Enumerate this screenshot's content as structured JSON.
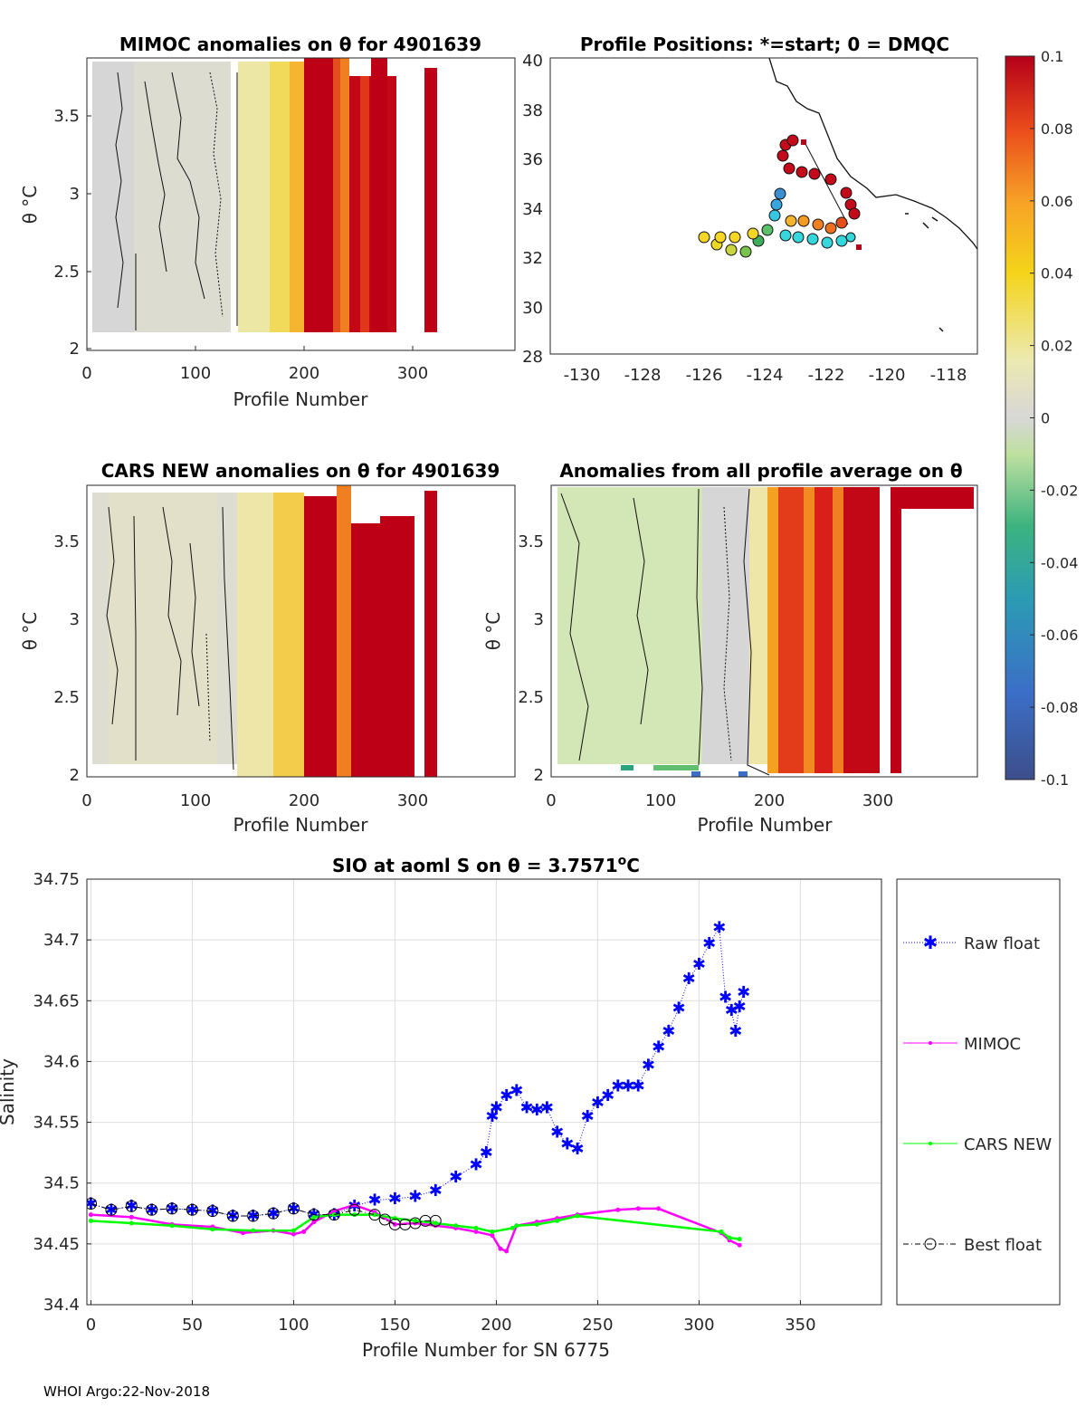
{
  "footer": "WHOI Argo:22-Nov-2018",
  "colorbar": {
    "ticks": [
      "0.1",
      "0.08",
      "0.06",
      "0.04",
      "0.02",
      "0",
      "-0.02",
      "-0.04",
      "-0.06",
      "-0.08",
      "-0.1"
    ],
    "range": [
      -0.1,
      0.1
    ],
    "colormap": "parula-to-red (diverging)"
  },
  "panels": {
    "p1": {
      "title": "MIMOC anomalies on θ  for 4901639",
      "xlabel": "Profile Number",
      "ylabel": "θ °C",
      "xticks": [
        "0",
        "100",
        "200",
        "300"
      ],
      "yticks": [
        "3.5",
        "3",
        "2.5",
        "2"
      ]
    },
    "p2": {
      "title": "Profile Positions: *=start; 0 = DMQC",
      "xticks": [
        "-130",
        "-128",
        "-126",
        "-124",
        "-122",
        "-120",
        "-118"
      ],
      "yticks": [
        "40",
        "38",
        "36",
        "34",
        "32",
        "30",
        "28"
      ]
    },
    "p3": {
      "title": "CARS NEW anomalies on θ for 4901639",
      "xlabel": "Profile Number",
      "ylabel": "θ °C",
      "xticks": [
        "0",
        "100",
        "200",
        "300"
      ],
      "yticks": [
        "3.5",
        "3",
        "2.5",
        "2"
      ]
    },
    "p4": {
      "title": "Anomalies from all profile average on θ",
      "xlabel": "Profile Number",
      "ylabel": "θ °C",
      "xticks": [
        "0",
        "100",
        "200",
        "300"
      ],
      "yticks": [
        "3.5",
        "3",
        "2.5",
        "2"
      ]
    }
  },
  "chart_data": [
    {
      "type": "heatmap",
      "title": "MIMOC anomalies on θ  for 4901639",
      "xlabel": "Profile Number",
      "ylabel": "θ °C",
      "xlim": [
        0,
        390
      ],
      "ylim": [
        1.98,
        3.83
      ],
      "column_anomalies": [
        {
          "profile_range": [
            5,
            145
          ],
          "anomaly": 0.0
        },
        {
          "profile_range": [
            145,
            195
          ],
          "anomaly": 0.03
        },
        {
          "profile_range": [
            195,
            205
          ],
          "anomaly": 0.08
        },
        {
          "profile_range": [
            205,
            285
          ],
          "anomaly": 0.1
        },
        {
          "profile_range": [
            310,
            322
          ],
          "anomaly": 0.1
        }
      ]
    },
    {
      "type": "scatter",
      "title": "Profile Positions: *=start; 0 = DMQC",
      "xlim": [
        -131.5,
        -117
      ],
      "ylim": [
        28,
        40
      ],
      "track": {
        "lon_start": -121.3,
        "lat_start": 32.4,
        "lon_end": -122.8,
        "lat_end": 36.6
      },
      "colored_by": "anomaly"
    },
    {
      "type": "heatmap",
      "title": "CARS NEW anomalies on θ for 4901639",
      "xlabel": "Profile Number",
      "ylabel": "θ °C",
      "xlim": [
        0,
        390
      ],
      "ylim": [
        1.98,
        3.83
      ],
      "column_anomalies": [
        {
          "profile_range": [
            5,
            140
          ],
          "anomaly": 0.005
        },
        {
          "profile_range": [
            140,
            200
          ],
          "anomaly": 0.03
        },
        {
          "profile_range": [
            200,
            240
          ],
          "anomaly": 0.09
        },
        {
          "profile_range": [
            240,
            300
          ],
          "anomaly": 0.1
        },
        {
          "profile_range": [
            310,
            322
          ],
          "anomaly": 0.1
        }
      ]
    },
    {
      "type": "heatmap",
      "title": "Anomalies from all profile average on θ",
      "xlabel": "Profile Number",
      "ylabel": "θ °C",
      "xlim": [
        0,
        390
      ],
      "ylim": [
        1.98,
        3.83
      ],
      "column_anomalies": [
        {
          "profile_range": [
            5,
            135
          ],
          "anomaly": -0.015
        },
        {
          "profile_range": [
            135,
            195
          ],
          "anomaly": 0.0
        },
        {
          "profile_range": [
            195,
            300
          ],
          "anomaly": 0.08
        },
        {
          "profile_range": [
            310,
            390
          ],
          "anomaly": 0.1
        }
      ]
    },
    {
      "type": "line",
      "title": "SIO at aoml S on θ = 3.7571°C",
      "xlabel": "Profile Number for SN 6775",
      "ylabel": "Salinity",
      "xlim": [
        -2,
        390
      ],
      "ylim": [
        34.4,
        34.75
      ],
      "xticks": [
        "0",
        "50",
        "100",
        "150",
        "200",
        "250",
        "300",
        "350"
      ],
      "yticks": [
        "34.75",
        "34.7",
        "34.65",
        "34.6",
        "34.55",
        "34.5",
        "34.45",
        "34.4"
      ],
      "series": [
        {
          "name": "Raw float",
          "color": "#0000ff",
          "marker": "asterisk",
          "style": "dotted",
          "x": [
            0,
            10,
            20,
            30,
            40,
            50,
            60,
            70,
            80,
            90,
            100,
            110,
            120,
            130,
            140,
            150,
            160,
            170,
            180,
            190,
            195,
            198,
            200,
            205,
            210,
            215,
            220,
            225,
            230,
            235,
            240,
            245,
            250,
            255,
            260,
            265,
            270,
            275,
            280,
            285,
            290,
            295,
            300,
            305,
            310,
            313,
            316,
            318,
            320,
            322
          ],
          "y": [
            34.483,
            34.478,
            34.481,
            34.478,
            34.479,
            34.478,
            34.477,
            34.473,
            34.473,
            34.475,
            34.479,
            34.474,
            34.474,
            34.481,
            34.486,
            34.487,
            34.489,
            34.494,
            34.505,
            34.515,
            34.525,
            34.555,
            34.562,
            34.572,
            34.576,
            34.562,
            34.56,
            34.562,
            34.542,
            34.532,
            34.528,
            34.555,
            34.566,
            34.572,
            34.58,
            34.58,
            34.58,
            34.597,
            34.612,
            34.625,
            34.644,
            34.668,
            34.68,
            34.697,
            34.71,
            34.653,
            34.642,
            34.625,
            34.645,
            34.657
          ]
        },
        {
          "name": "MIMOC",
          "color": "#ff00ff",
          "marker": "dot",
          "style": "solid",
          "x": [
            0,
            20,
            40,
            60,
            75,
            90,
            100,
            105,
            110,
            120,
            130,
            140,
            150,
            160,
            170,
            180,
            190,
            198,
            202,
            205,
            210,
            220,
            230,
            240,
            260,
            270,
            280,
            311,
            315,
            320
          ],
          "y": [
            34.474,
            34.472,
            34.466,
            34.464,
            34.459,
            34.461,
            34.458,
            34.46,
            34.468,
            34.477,
            34.482,
            34.476,
            34.466,
            34.467,
            34.465,
            34.463,
            34.46,
            34.457,
            34.446,
            34.444,
            34.465,
            34.468,
            34.471,
            34.474,
            34.478,
            34.479,
            34.479,
            34.459,
            34.453,
            34.449
          ]
        },
        {
          "name": "CARS NEW",
          "color": "#00ff00",
          "marker": "dot",
          "style": "solid",
          "x": [
            0,
            20,
            40,
            60,
            80,
            100,
            110,
            120,
            130,
            140,
            150,
            160,
            170,
            180,
            190,
            198,
            208,
            210,
            220,
            230,
            240,
            311,
            315,
            320
          ],
          "y": [
            34.469,
            34.467,
            34.465,
            34.462,
            34.461,
            34.461,
            34.472,
            34.474,
            34.474,
            34.474,
            34.471,
            34.469,
            34.467,
            34.465,
            34.463,
            34.46,
            34.463,
            34.465,
            34.466,
            34.469,
            34.473,
            34.46,
            34.455,
            34.454
          ]
        },
        {
          "name": "Best float",
          "color": "#000000",
          "marker": "circle",
          "style": "dashdot",
          "x": [
            0,
            10,
            20,
            30,
            40,
            50,
            60,
            70,
            80,
            90,
            100,
            110,
            120,
            130,
            140,
            145,
            150,
            155,
            160,
            165,
            170
          ],
          "y": [
            34.483,
            34.478,
            34.481,
            34.478,
            34.479,
            34.478,
            34.477,
            34.473,
            34.473,
            34.475,
            34.479,
            34.474,
            34.474,
            34.478,
            34.474,
            34.47,
            34.466,
            34.466,
            34.467,
            34.469,
            34.469
          ]
        }
      ]
    }
  ],
  "salinity_panel": {
    "title_prefix": "SIO at aoml S on θ = 3.7571",
    "title_sup": "o",
    "title_suffix": "C",
    "xlabel": "Profile Number for SN 6775",
    "ylabel": "Salinity",
    "xticks": [
      "0",
      "50",
      "100",
      "150",
      "200",
      "250",
      "300",
      "350"
    ],
    "yticks": [
      "34.75",
      "34.7",
      "34.65",
      "34.6",
      "34.55",
      "34.5",
      "34.45",
      "34.4"
    ],
    "legend": [
      "Raw float",
      "MIMOC",
      "CARS NEW",
      "Best float"
    ]
  }
}
